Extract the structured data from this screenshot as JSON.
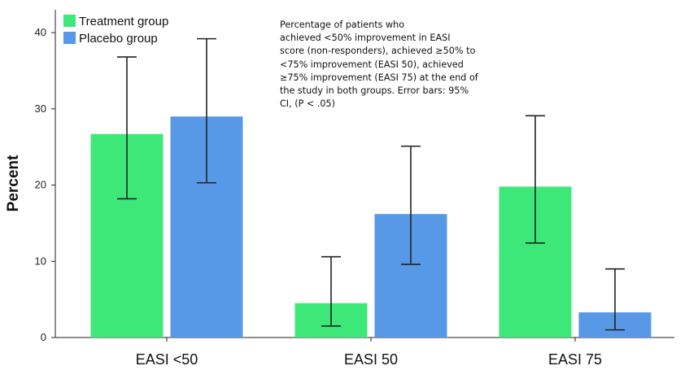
{
  "chart_data": {
    "type": "bar",
    "categories": [
      "EASI <50",
      "EASI 50",
      "EASI 75"
    ],
    "series": [
      {
        "name": "Treatment group",
        "color": "#3ee878",
        "values": [
          26.7,
          4.5,
          19.8
        ],
        "ci_low": [
          18.2,
          1.5,
          12.4
        ],
        "ci_high": [
          36.8,
          10.6,
          29.1
        ]
      },
      {
        "name": "Placebo group",
        "color": "#5799e6",
        "values": [
          29.0,
          16.2,
          3.3
        ],
        "ci_low": [
          20.3,
          9.6,
          1.0
        ],
        "ci_high": [
          39.2,
          25.1,
          9.0
        ]
      }
    ],
    "title": "",
    "xlabel": "",
    "ylabel": "Percent",
    "ylim": [
      0,
      43
    ],
    "yticks": [
      0,
      10,
      20,
      30,
      40
    ],
    "grid": false,
    "legend_position": "top-left",
    "annotation": "Percentage of patients who\nachieved <50% improvement in EASI\nscore (non-responders), achieved ≥50% to\n<75% improvement (EASI 50), achieved\n≥75% improvement (EASI 75) at the end of\nthe study in both groups. Error bars: 95%\nCI, (P < .05)"
  }
}
